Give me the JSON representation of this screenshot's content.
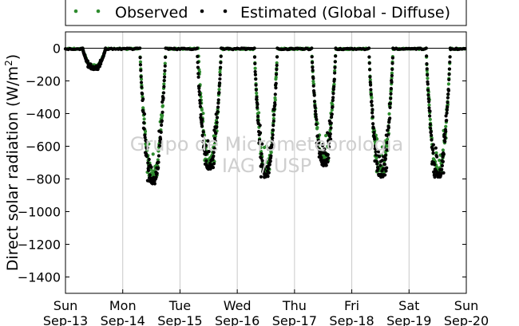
{
  "chart_data": {
    "type": "scatter",
    "title": "",
    "xlabel": "",
    "ylabel": "Direct solar radiation (W/m²)",
    "ylabel_parts": {
      "main": "Direct solar radiation (W/m",
      "sup": "2",
      "close": ")"
    },
    "xlim": [
      0,
      7
    ],
    "ylim": [
      -1500,
      100
    ],
    "yticks": [
      0,
      -200,
      -400,
      -600,
      -800,
      -1000,
      -1200,
      -1400
    ],
    "x_ticks": [
      {
        "x": 0,
        "day": "Sun",
        "date": "Sep-13"
      },
      {
        "x": 1,
        "day": "Mon",
        "date": "Sep-14"
      },
      {
        "x": 2,
        "day": "Tue",
        "date": "Sep-15"
      },
      {
        "x": 3,
        "day": "Wed",
        "date": "Sep-16"
      },
      {
        "x": 4,
        "day": "Thu",
        "date": "Sep-17"
      },
      {
        "x": 5,
        "day": "Fri",
        "date": "Sep-18"
      },
      {
        "x": 6,
        "day": "Sat",
        "date": "Sep-19"
      },
      {
        "x": 7,
        "day": "Sun",
        "date": "Sep-20"
      }
    ],
    "grid": "vertical",
    "legend_position": "top",
    "series": [
      {
        "name": "Observed",
        "color": "#2e8b2e",
        "days": [
          {
            "day": 0,
            "start": 0.3,
            "end": 0.7,
            "min": -120
          },
          {
            "day": 1,
            "start": 0.3,
            "end": 0.75,
            "min": -780
          },
          {
            "day": 2,
            "start": 0.32,
            "end": 0.72,
            "min": -700
          },
          {
            "day": 3,
            "start": 0.3,
            "end": 0.7,
            "min": -760
          },
          {
            "day": 4,
            "start": 0.3,
            "end": 0.72,
            "min": -690
          },
          {
            "day": 5,
            "start": 0.3,
            "end": 0.72,
            "min": -760
          },
          {
            "day": 6,
            "start": 0.3,
            "end": 0.72,
            "min": -770
          }
        ]
      },
      {
        "name": "Estimated (Global - Diffuse)",
        "color": "#000000",
        "days": [
          {
            "day": 0,
            "start": 0.3,
            "end": 0.7,
            "min": -130
          },
          {
            "day": 1,
            "start": 0.3,
            "end": 0.75,
            "min": -830
          },
          {
            "day": 2,
            "start": 0.3,
            "end": 0.72,
            "min": -740
          },
          {
            "day": 3,
            "start": 0.3,
            "end": 0.7,
            "min": -790
          },
          {
            "day": 4,
            "start": 0.3,
            "end": 0.72,
            "min": -720
          },
          {
            "day": 5,
            "start": 0.3,
            "end": 0.72,
            "min": -790
          },
          {
            "day": 6,
            "start": 0.3,
            "end": 0.72,
            "min": -790
          }
        ]
      }
    ]
  },
  "legend": {
    "observed_label": "Observed",
    "estimated_label": "Estimated (Global - Diffuse)"
  },
  "watermark": {
    "line1": "Grupo de Micrometeorologia",
    "line2": "IAG / USP"
  }
}
